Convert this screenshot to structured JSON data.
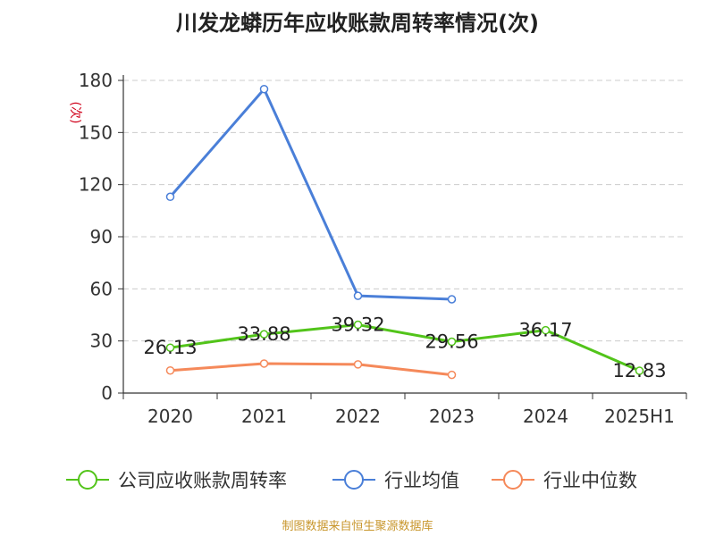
{
  "title": "川发龙蟒历年应收账款周转率情况(次)",
  "footer": "制图数据来自恒生聚源数据库",
  "chart_data": {
    "type": "line",
    "title": "川发龙蟒历年应收账款周转率情况(次)",
    "ylabel": "(次)",
    "categories": [
      "2020",
      "2021",
      "2022",
      "2023",
      "2024",
      "2025H1"
    ],
    "ylim": [
      0,
      180
    ],
    "yticks": [
      0,
      30,
      60,
      90,
      120,
      150,
      180
    ],
    "grid": "horizontal-dashed",
    "legend_position": "bottom",
    "series": [
      {
        "name": "公司应收账款周转率",
        "color": "#52c41a",
        "values": [
          26.13,
          33.88,
          39.32,
          29.56,
          36.17,
          12.83
        ],
        "labels": [
          "26.13",
          "33.88",
          "39.32",
          "29.56",
          "36.17",
          "12.83"
        ]
      },
      {
        "name": "行业均值",
        "color": "#4a7fd8",
        "values": [
          113,
          175,
          56,
          54,
          null,
          null
        ]
      },
      {
        "name": "行业中位数",
        "color": "#f5895a",
        "values": [
          13,
          17,
          16.5,
          10.5,
          null,
          null
        ]
      }
    ]
  }
}
